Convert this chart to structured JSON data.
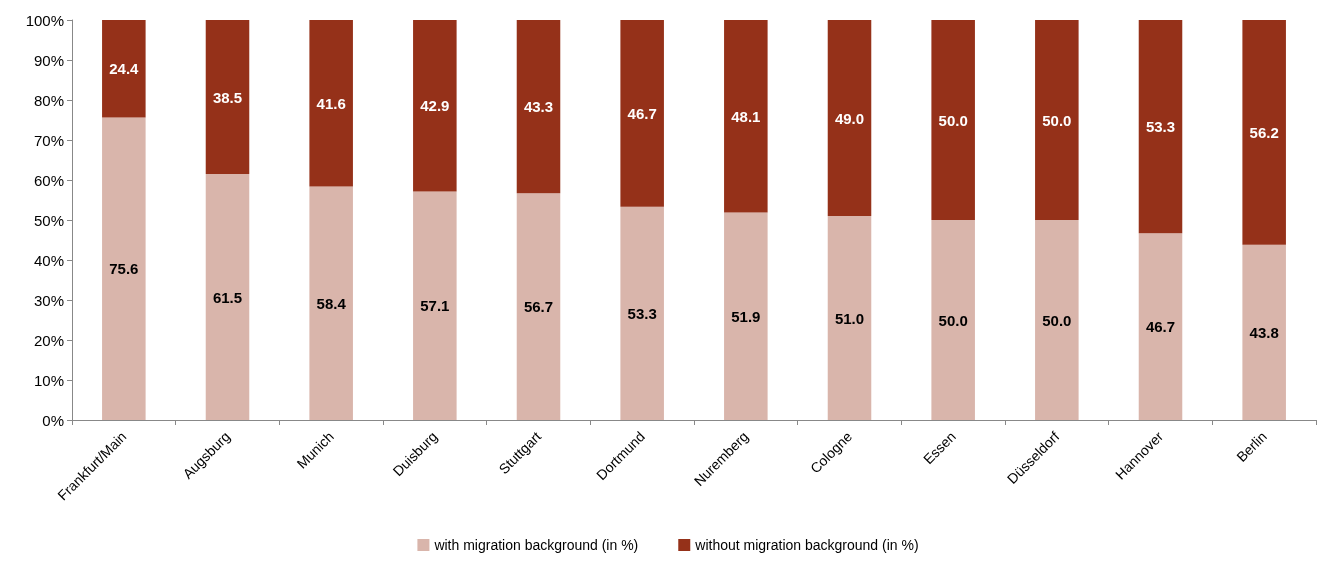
{
  "chart_data": {
    "type": "bar",
    "stacked": true,
    "grid": false,
    "legend": "bottom",
    "categories": [
      "Frankfurt/Main",
      "Augsburg",
      "Munich",
      "Duisburg",
      "Stuttgart",
      "Dortmund",
      "Nuremberg",
      "Cologne",
      "Essen",
      "Düsseldorf",
      "Hannover",
      "Berlin"
    ],
    "series": [
      {
        "name": "with migration background (in %)",
        "color": "#d9b5ab",
        "values": [
          75.6,
          61.5,
          58.4,
          57.1,
          56.7,
          53.3,
          51.9,
          51.0,
          50.0,
          50.0,
          46.7,
          43.8
        ],
        "value_labels": [
          "75.6",
          "61.5",
          "58.4",
          "57.1",
          "56.7",
          "53.3",
          "51.9",
          "51.0",
          "50.0",
          "50.0",
          "46.7",
          "43.8"
        ]
      },
      {
        "name": "without migration background (in %)",
        "color": "#953119",
        "values": [
          24.4,
          38.5,
          41.6,
          42.9,
          43.3,
          46.7,
          48.1,
          49.0,
          50.0,
          50.0,
          53.3,
          56.2
        ],
        "value_labels": [
          "24.4",
          "38.5",
          "41.6",
          "42.9",
          "43.3",
          "46.7",
          "48.1",
          "49.0",
          "50.0",
          "50.0",
          "53.3",
          "56.2"
        ]
      }
    ],
    "ylim": [
      0,
      100
    ],
    "yticks": [
      {
        "value": 0,
        "label": "0%"
      },
      {
        "value": 10,
        "label": "10%"
      },
      {
        "value": 20,
        "label": "20%"
      },
      {
        "value": 30,
        "label": "30%"
      },
      {
        "value": 40,
        "label": "40%"
      },
      {
        "value": 50,
        "label": "50%"
      },
      {
        "value": 60,
        "label": "60%"
      },
      {
        "value": 70,
        "label": "70%"
      },
      {
        "value": 80,
        "label": "80%"
      },
      {
        "value": 90,
        "label": "90%"
      },
      {
        "value": 100,
        "label": "100%"
      }
    ]
  }
}
